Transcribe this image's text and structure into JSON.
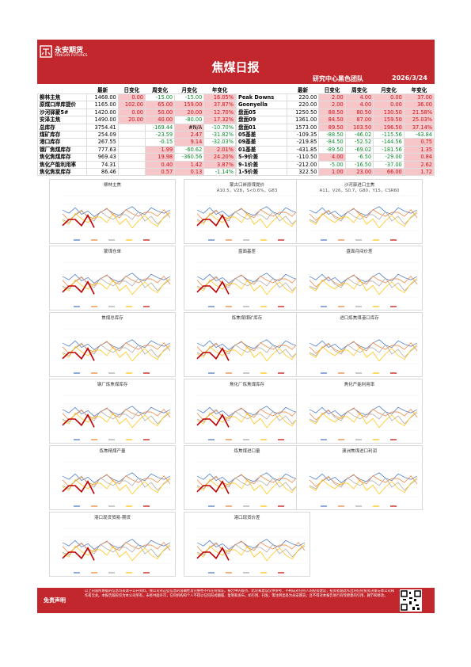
{
  "header": {
    "logo_cn": "永安期货",
    "logo_en": "YONGAN FUTURES",
    "title": "焦煤日报",
    "team": "研究中心黑色团队",
    "date": "2026/3/24"
  },
  "table": {
    "left_header": [
      "最新",
      "日变化",
      "周变化",
      "月变化",
      "年变化"
    ],
    "left_rows": [
      [
        "柳林主焦",
        "1468.00",
        "0.00",
        "-15.00",
        "-15.00",
        "16.05%"
      ],
      [
        "原煤口岸库提价",
        "1165.00",
        "102.00",
        "65.00",
        "159.00",
        "37.87%"
      ],
      [
        "沙河驿蒙5#",
        "1420.00",
        "0.00",
        "50.00",
        "20.00",
        "12.70%"
      ],
      [
        "安泽主焦",
        "1490.00",
        "20.00",
        "40.00",
        "-80.00",
        "17.32%"
      ],
      [
        "总库存",
        "3754.41",
        null,
        "-169.44",
        "#N/A",
        "-10.70%"
      ],
      [
        "煤矿库存",
        "254.09",
        null,
        "-23.59",
        "2.47",
        "-31.82%"
      ],
      [
        "港口库存",
        "267.55",
        null,
        "-0.15",
        "9.14",
        "-32.03%"
      ],
      [
        "钢厂焦煤库存",
        "777.63",
        null,
        "1.99",
        "-60.62",
        "2.01%"
      ],
      [
        "焦化焦煤库存",
        "969.43",
        null,
        "19.98",
        "-360.56",
        "24.20%"
      ],
      [
        "焦化产能利用率",
        "74.31",
        null,
        "0.40",
        "1.42",
        "3.87%"
      ],
      [
        "焦化焦炭库存",
        "86.46",
        null,
        "0.57",
        "0.13",
        "-1.14%"
      ]
    ],
    "right_header": [
      "最新",
      "日变化",
      "周变化",
      "月变化",
      "年变化"
    ],
    "right_rows": [
      [
        "Peak Downs",
        "220.00",
        "2.00",
        "4.00",
        "0.00",
        "37.00"
      ],
      [
        "Goonyella",
        "220.00",
        "2.00",
        "4.00",
        "0.00",
        "36.00"
      ],
      [
        "盘面05",
        "1250.50",
        "88.50",
        "80.50",
        "130.50",
        "21.58%"
      ],
      [
        "盘面09",
        "1361.00",
        "84.50",
        "87.00",
        "159.50",
        "25.03%"
      ],
      [
        "盘面01",
        "1573.00",
        "89.50",
        "103.50",
        "196.50",
        "37.14%"
      ],
      [
        "05基差",
        "-109.35",
        "-88.50",
        "-46.02",
        "-115.56",
        "-43.84"
      ],
      [
        "09基差",
        "-219.85",
        "-84.50",
        "-52.52",
        "-144.56",
        "0.75"
      ],
      [
        "01基差",
        "-431.85",
        "-89.50",
        "-69.02",
        "-181.56",
        "1.35"
      ],
      [
        "5-9价差",
        "-110.50",
        "4.00",
        "-6.50",
        "-29.00",
        "0.84"
      ],
      [
        "9-1价差",
        "-212.00",
        "-5.00",
        "-16.50",
        "-37.00",
        "2.62"
      ],
      [
        "1-5价差",
        "322.50",
        "1.00",
        "23.00",
        "66.00",
        "1.72"
      ]
    ]
  },
  "charts": [
    {
      "title": "柳林主焦"
    },
    {
      "title": "蒙古口岸原煤提价",
      "subtitle": "A10.5，V28，S<0.6%，G83"
    },
    {
      "title": "沙河驿进口主焦",
      "subtitle": "A11，V26，S0.7，G80，Y15，CSR60"
    },
    {
      "title": "蒙煤仓单"
    },
    {
      "title": "盘面基差"
    },
    {
      "title": "盘面月间价差"
    },
    {
      "title": "焦煤总库存"
    },
    {
      "title": "炼焦煤煤矿库存"
    },
    {
      "title": "进口炼焦煤港口库存"
    },
    {
      "title": "钢厂炼焦煤库存"
    },
    {
      "title": "焦化厂炼焦煤库存"
    },
    {
      "title": "焦化产能利用率"
    },
    {
      "title": "炼焦精煤产量"
    },
    {
      "title": "炼焦煤进口量"
    },
    {
      "title": "澳洲焦煤进口利润"
    },
    {
      "title": "港口现货贸易-期货"
    },
    {
      "title": "港口现货价差"
    }
  ],
  "footer": {
    "label": "免责声明",
    "text": "以上内容所依据的信息均来源于公开资料，我公司对这些信息的准确性及完整性不作任何保证。报告中的观点、结论和建议仅供参考，不构成对任何人的投资建议，投资者据此作出的任何投资决策与本公司和作者无关。本报告版权仅为本公司所有，未经书面许可，任何机构和个人不得以任何形式翻版、复制和发布。如引用、刊发，需注明出处为永安期货，且不得对本报告进行有悖原意的引用、删节和修改。"
  }
}
